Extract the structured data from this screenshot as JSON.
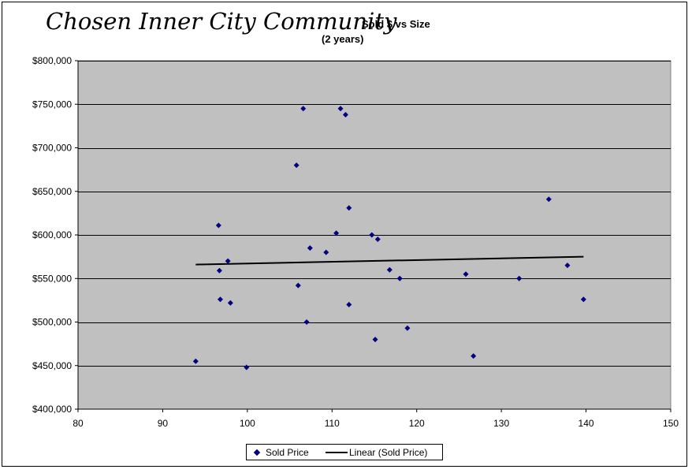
{
  "chart_data": {
    "type": "scatter",
    "title": "Chosen Inner City Community",
    "subtitle": "Sold $ vs Size",
    "subtitle2": "(2 years)",
    "xlabel": "",
    "ylabel": "",
    "xlim": [
      80,
      150
    ],
    "ylim": [
      400000,
      800000
    ],
    "x_ticks": [
      80,
      90,
      100,
      110,
      120,
      130,
      140,
      150
    ],
    "y_ticks": [
      400000,
      450000,
      500000,
      550000,
      600000,
      650000,
      700000,
      750000,
      800000
    ],
    "y_tick_labels": [
      "$400,000",
      "$450,000",
      "$500,000",
      "$550,000",
      "$600,000",
      "$650,000",
      "$700,000",
      "$750,000",
      "$800,000"
    ],
    "grid": "horizontal",
    "plot_background": "#C0C0C0",
    "legend_position": "bottom",
    "series": [
      {
        "name": "Sold Price",
        "color": "#000080",
        "marker": "diamond",
        "points": [
          [
            93.9,
            455000
          ],
          [
            96.6,
            611000
          ],
          [
            96.7,
            559000
          ],
          [
            96.8,
            526000
          ],
          [
            97.7,
            570000
          ],
          [
            98.0,
            522000
          ],
          [
            99.9,
            448000
          ],
          [
            105.8,
            680000
          ],
          [
            106.0,
            542000
          ],
          [
            106.6,
            745000
          ],
          [
            107.0,
            500000
          ],
          [
            107.4,
            585000
          ],
          [
            109.3,
            580000
          ],
          [
            110.5,
            602000
          ],
          [
            111.0,
            745000
          ],
          [
            111.6,
            738000
          ],
          [
            112.0,
            631000
          ],
          [
            112.0,
            520000
          ],
          [
            114.7,
            600000
          ],
          [
            115.1,
            480000
          ],
          [
            115.4,
            595000
          ],
          [
            116.8,
            560000
          ],
          [
            118.0,
            550000
          ],
          [
            118.9,
            493000
          ],
          [
            125.8,
            555000
          ],
          [
            126.7,
            461000
          ],
          [
            132.1,
            550000
          ],
          [
            135.6,
            641000
          ],
          [
            137.8,
            565000
          ],
          [
            139.7,
            526000
          ]
        ]
      },
      {
        "name": "Linear (Sold Price)",
        "color": "#000000",
        "type": "line",
        "points": [
          [
            93.9,
            566000
          ],
          [
            139.7,
            575000
          ]
        ]
      }
    ]
  },
  "legend": {
    "item1": "Sold Price",
    "item2": "Linear (Sold Price)"
  }
}
